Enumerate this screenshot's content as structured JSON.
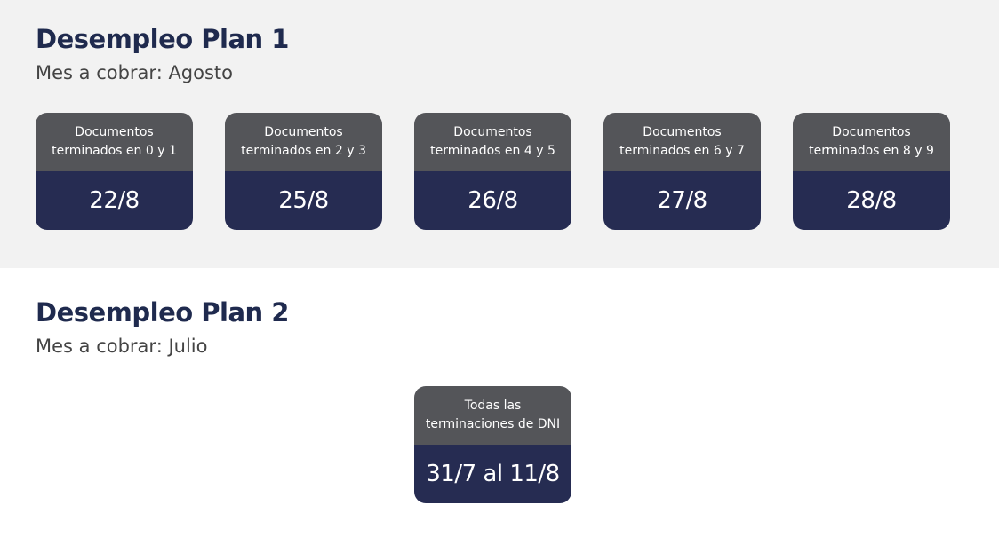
{
  "plan1": {
    "title": "Desempleo Plan 1",
    "subtitle": "Mes a cobrar: Agosto",
    "cards": [
      {
        "label": "Documentos terminados en 0 y 1",
        "date": "22/8"
      },
      {
        "label": "Documentos terminados en 2 y 3",
        "date": "25/8"
      },
      {
        "label": "Documentos terminados en 4 y 5",
        "date": "26/8"
      },
      {
        "label": "Documentos terminados en 6 y 7",
        "date": "27/8"
      },
      {
        "label": "Documentos terminados en 8 y 9",
        "date": "28/8"
      }
    ]
  },
  "plan2": {
    "title": "Desempleo Plan 2",
    "subtitle": "Mes a cobrar: Julio",
    "cards": [
      {
        "label": "Todas las terminaciones de DNI",
        "date": "31/7 al 11/8"
      }
    ]
  },
  "colors": {
    "title": "#1f2a4e",
    "card_header": "#545559",
    "card_body": "#262c52",
    "section_bg": "#f2f2f2"
  }
}
